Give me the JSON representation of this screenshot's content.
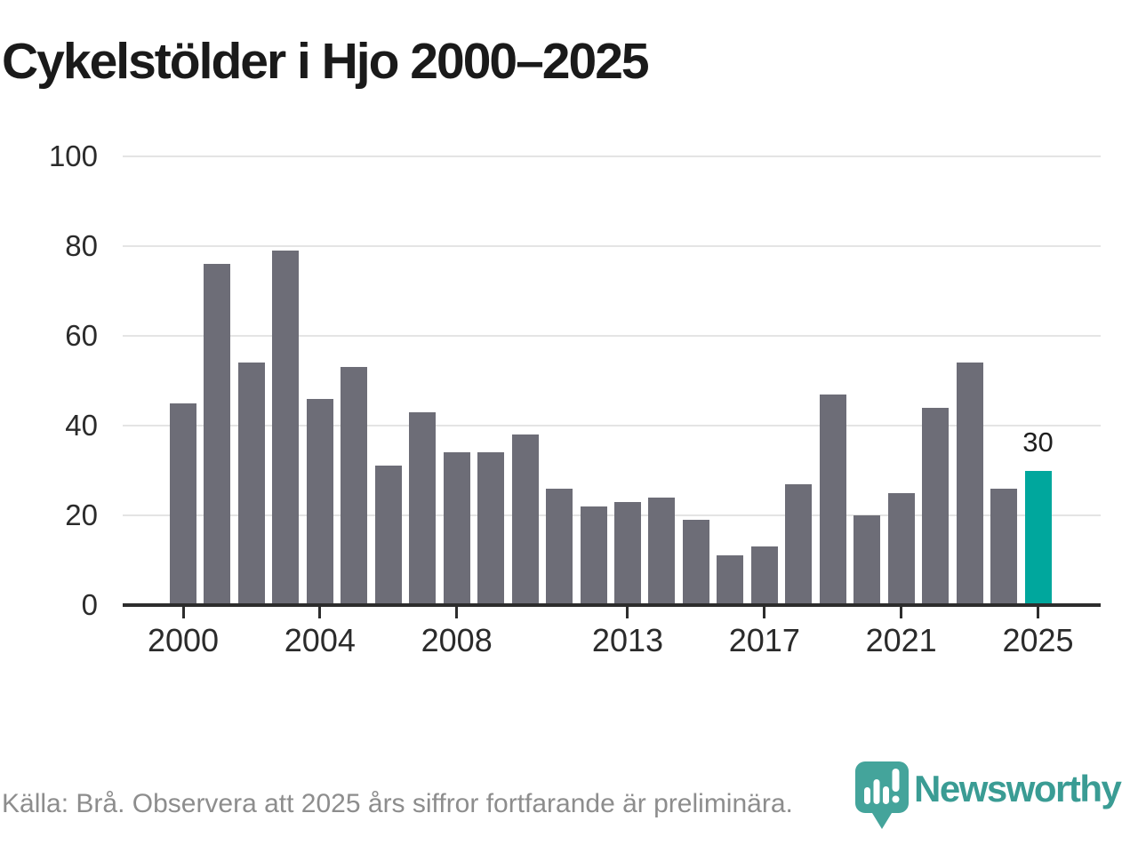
{
  "chart_data": {
    "type": "bar",
    "title": "Cykelstölder i Hjo 2000–2025",
    "categories": [
      2000,
      2001,
      2002,
      2003,
      2004,
      2005,
      2006,
      2007,
      2008,
      2009,
      2010,
      2011,
      2012,
      2013,
      2014,
      2015,
      2016,
      2017,
      2018,
      2019,
      2020,
      2021,
      2022,
      2023,
      2024,
      2025
    ],
    "values": [
      45,
      76,
      54,
      79,
      46,
      53,
      31,
      43,
      34,
      34,
      38,
      26,
      22,
      23,
      24,
      19,
      11,
      13,
      27,
      47,
      20,
      25,
      44,
      54,
      26,
      30
    ],
    "xlabel": "",
    "ylabel": "",
    "ylim": [
      0,
      100
    ],
    "yticks": [
      0,
      20,
      40,
      60,
      80,
      100
    ],
    "xticks": [
      2000,
      2004,
      2008,
      2013,
      2017,
      2021,
      2025
    ],
    "grid": "horizontal",
    "legend": "none",
    "bar_color": "#6d6d77",
    "highlight": {
      "year": 2025,
      "value": 30,
      "label": "30",
      "color": "#00a79d"
    }
  },
  "footer": {
    "source": "Källa: Brå. Observera att 2025 års siffror fortfarande är preliminära.",
    "brand": "Newsworthy",
    "brand_color": "#3a9c94",
    "logo_bubble_color": "#44a49b"
  }
}
